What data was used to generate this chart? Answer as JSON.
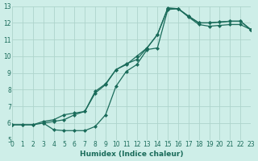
{
  "xlabel": "Humidex (Indice chaleur)",
  "bg_color": "#ceeee8",
  "line_color": "#1a6b5a",
  "grid_color": "#aed4cc",
  "xlim": [
    0,
    23
  ],
  "ylim": [
    5,
    13
  ],
  "xticks": [
    0,
    1,
    2,
    3,
    4,
    5,
    6,
    7,
    8,
    9,
    10,
    11,
    12,
    13,
    14,
    15,
    16,
    17,
    18,
    19,
    20,
    21,
    22,
    23
  ],
  "yticks": [
    5,
    6,
    7,
    8,
    9,
    10,
    11,
    12,
    13
  ],
  "series": [
    {
      "x": [
        0,
        1,
        2,
        3,
        4,
        5,
        6,
        7,
        8,
        9,
        10,
        11,
        12,
        13,
        14,
        15,
        16,
        17,
        18,
        19,
        20,
        21,
        22,
        23
      ],
      "y": [
        5.9,
        5.9,
        5.9,
        6.0,
        5.6,
        5.55,
        5.55,
        5.55,
        5.8,
        6.5,
        8.2,
        9.1,
        9.5,
        10.4,
        10.5,
        12.8,
        12.85,
        12.4,
        12.0,
        12.0,
        12.05,
        12.1,
        12.1,
        11.6
      ]
    },
    {
      "x": [
        0,
        1,
        2,
        3,
        4,
        5,
        6,
        7,
        8,
        9,
        10,
        11,
        12,
        13,
        14,
        15,
        16,
        17,
        18,
        19,
        20,
        21,
        22,
        23
      ],
      "y": [
        5.9,
        5.9,
        5.9,
        6.1,
        6.2,
        6.5,
        6.6,
        6.7,
        7.8,
        8.3,
        9.2,
        9.5,
        10.0,
        10.5,
        11.3,
        12.9,
        12.85,
        12.35,
        11.9,
        11.8,
        11.85,
        11.9,
        11.9,
        11.6
      ]
    },
    {
      "x": [
        3,
        4,
        5,
        6,
        7,
        8,
        9,
        10,
        11,
        12,
        13,
        14,
        15,
        16,
        17,
        18,
        19,
        20,
        21,
        22,
        23
      ],
      "y": [
        6.0,
        6.1,
        6.2,
        6.5,
        6.7,
        7.9,
        8.35,
        9.2,
        9.55,
        9.8,
        10.5,
        11.3,
        12.85,
        12.85,
        12.4,
        12.0,
        12.0,
        12.05,
        12.1,
        12.1,
        11.6
      ]
    }
  ]
}
